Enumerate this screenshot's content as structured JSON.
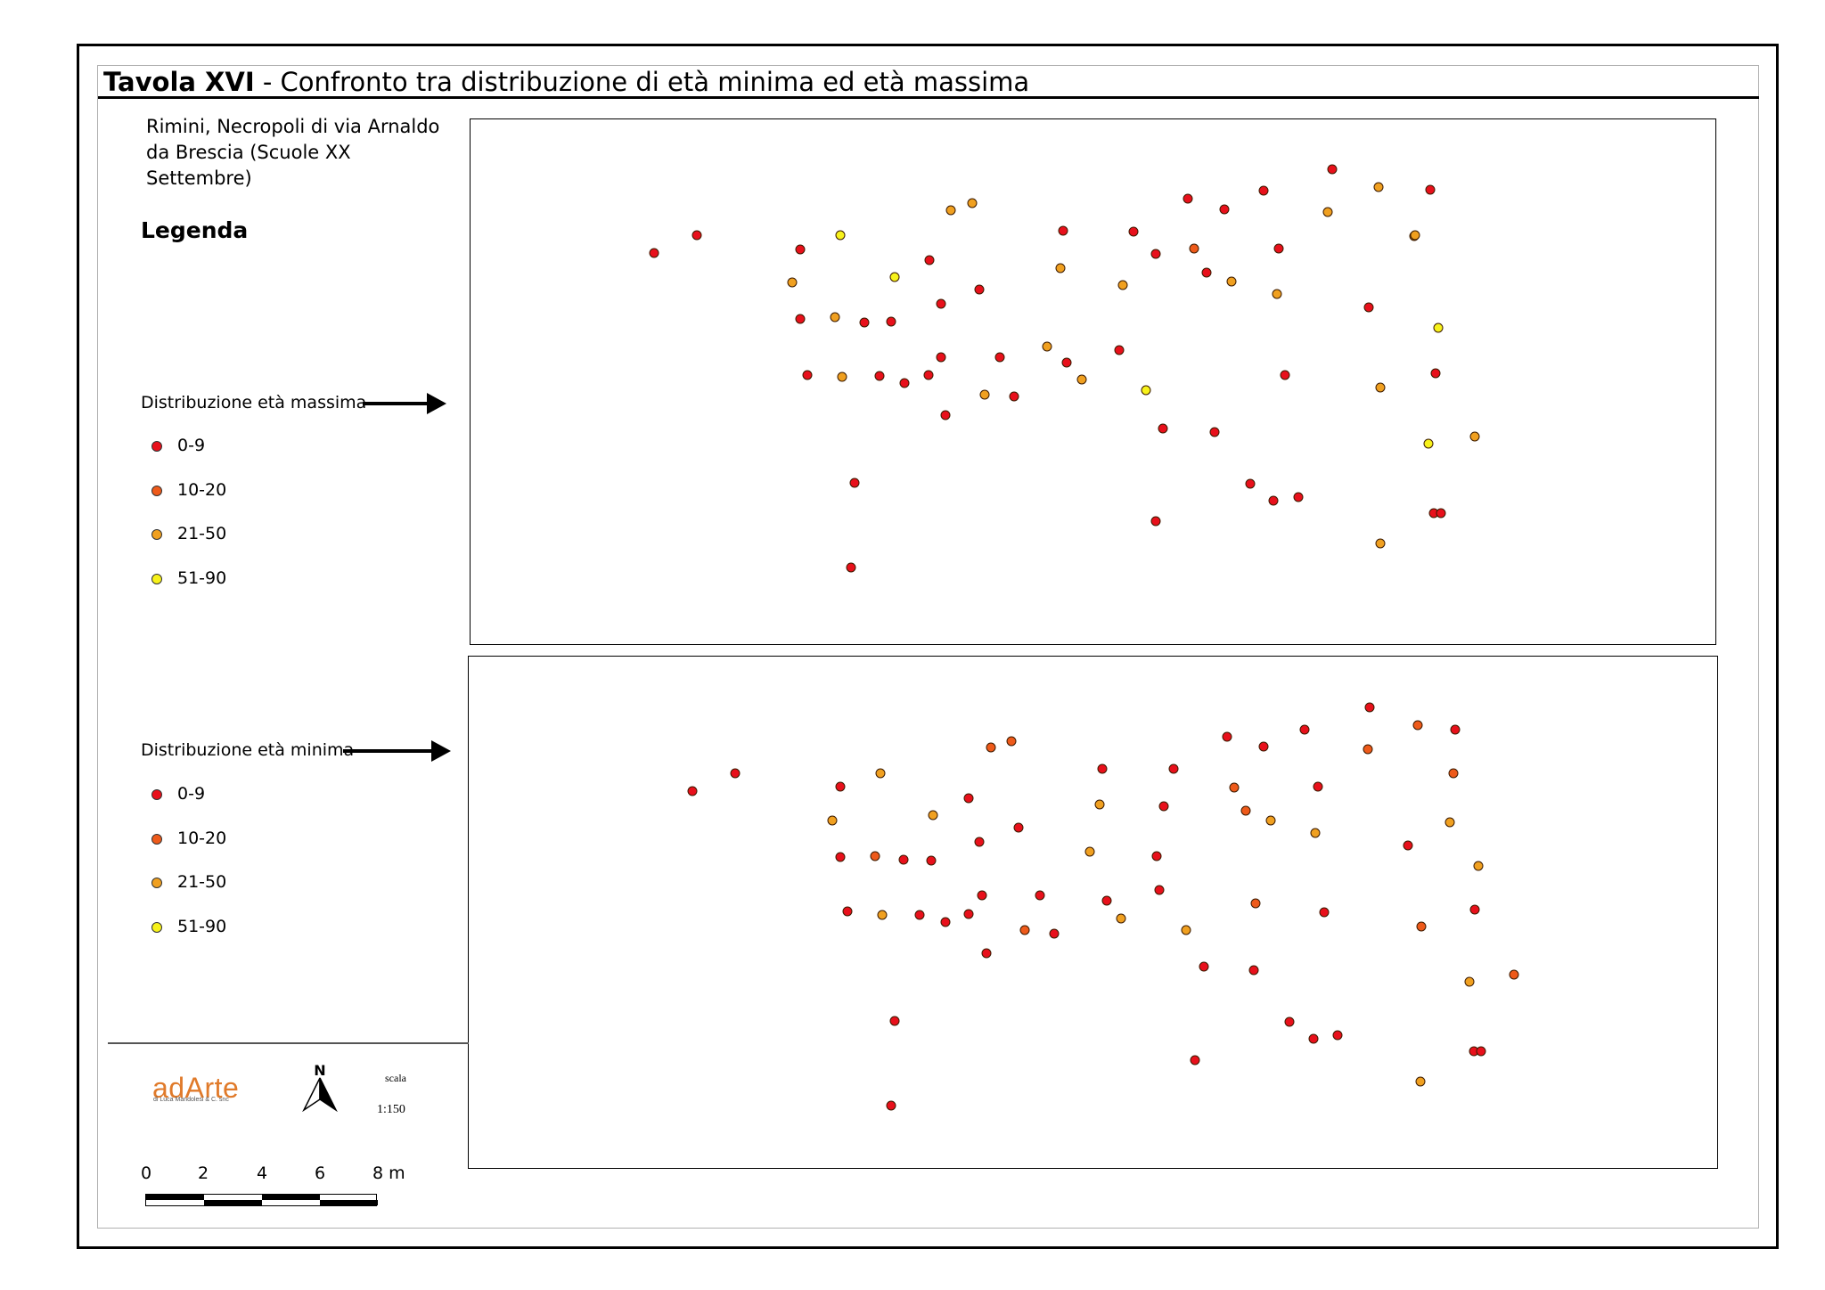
{
  "title": {
    "plate": "Tavola XVI",
    "text": "- Confronto tra distribuzione di età minima ed età massima"
  },
  "site": "Rimini, Necropoli di via Arnaldo da Brescia (Scuole XX Settembre)",
  "legend": {
    "heading": "Legenda",
    "classes": [
      {
        "label": "0-9",
        "color": "#e8101b"
      },
      {
        "label": "10-20",
        "color": "#ee5a1a"
      },
      {
        "label": "21-50",
        "color": "#f0a020"
      },
      {
        "label": "51-90",
        "color": "#f7f21a"
      }
    ],
    "max_label": "Distribuzione età massima",
    "min_label": "Distribuzione età minima"
  },
  "footer": {
    "logo": "adArte",
    "logo_sub": "di Luca Mandolesi & C. snc",
    "north_label": "N",
    "scale_label": "scala",
    "scale_ratio": "1:150",
    "scale_ticks": [
      "0",
      "2",
      "4",
      "6",
      "8 m"
    ]
  },
  "maps": {
    "max": [
      [
        733,
        283,
        0
      ],
      [
        781,
        263,
        0
      ],
      [
        897,
        279,
        0
      ],
      [
        942,
        263,
        3
      ],
      [
        1066,
        235,
        2
      ],
      [
        1090,
        227,
        2
      ],
      [
        1003,
        310,
        3
      ],
      [
        1042,
        291,
        0
      ],
      [
        888,
        316,
        2
      ],
      [
        897,
        357,
        0
      ],
      [
        936,
        355,
        2
      ],
      [
        969,
        361,
        0
      ],
      [
        999,
        360,
        0
      ],
      [
        1055,
        340,
        0
      ],
      [
        1098,
        324,
        0
      ],
      [
        1192,
        258,
        0
      ],
      [
        1189,
        300,
        2
      ],
      [
        1271,
        259,
        0
      ],
      [
        1259,
        319,
        2
      ],
      [
        1296,
        284,
        0
      ],
      [
        1332,
        222,
        0
      ],
      [
        1339,
        278,
        1
      ],
      [
        1373,
        234,
        0
      ],
      [
        1353,
        305,
        0
      ],
      [
        1381,
        315,
        2
      ],
      [
        1417,
        213,
        0
      ],
      [
        1434,
        278,
        0
      ],
      [
        1432,
        329,
        2
      ],
      [
        1494,
        189,
        0
      ],
      [
        1489,
        237,
        2
      ],
      [
        1546,
        209,
        2
      ],
      [
        1586,
        264,
        2
      ],
      [
        1604,
        212,
        0
      ],
      [
        1587,
        263,
        2
      ],
      [
        1613,
        367,
        3
      ],
      [
        905,
        420,
        0
      ],
      [
        944,
        422,
        2
      ],
      [
        986,
        421,
        0
      ],
      [
        1014,
        429,
        0
      ],
      [
        1041,
        420,
        0
      ],
      [
        1055,
        400,
        0
      ],
      [
        1060,
        465,
        0
      ],
      [
        1104,
        442,
        2
      ],
      [
        1121,
        400,
        0
      ],
      [
        1137,
        444,
        0
      ],
      [
        1174,
        388,
        2
      ],
      [
        1196,
        406,
        0
      ],
      [
        1213,
        425,
        2
      ],
      [
        1255,
        392,
        0
      ],
      [
        1285,
        437,
        3
      ],
      [
        1441,
        420,
        0
      ],
      [
        1535,
        344,
        0
      ],
      [
        1548,
        434,
        2
      ],
      [
        1610,
        418,
        0
      ],
      [
        1304,
        480,
        0
      ],
      [
        1362,
        484,
        0
      ],
      [
        1402,
        542,
        0
      ],
      [
        1428,
        561,
        0
      ],
      [
        1456,
        557,
        0
      ],
      [
        1296,
        584,
        0
      ],
      [
        1548,
        609,
        2
      ],
      [
        1602,
        497,
        3
      ],
      [
        1654,
        489,
        2
      ],
      [
        1608,
        575,
        0
      ],
      [
        1616,
        575,
        0
      ],
      [
        958,
        541,
        0
      ],
      [
        954,
        636,
        0
      ]
    ],
    "min": [
      [
        776,
        887,
        0
      ],
      [
        824,
        867,
        0
      ],
      [
        1111,
        838,
        1
      ],
      [
        1134,
        831,
        1
      ],
      [
        987,
        867,
        2
      ],
      [
        942,
        882,
        0
      ],
      [
        933,
        920,
        2
      ],
      [
        1046,
        914,
        2
      ],
      [
        1086,
        895,
        0
      ],
      [
        1142,
        928,
        0
      ],
      [
        1236,
        862,
        0
      ],
      [
        1233,
        902,
        2
      ],
      [
        1316,
        862,
        0
      ],
      [
        1305,
        904,
        0
      ],
      [
        1376,
        826,
        0
      ],
      [
        1417,
        837,
        0
      ],
      [
        1463,
        818,
        0
      ],
      [
        1384,
        883,
        1
      ],
      [
        1397,
        909,
        1
      ],
      [
        1425,
        920,
        2
      ],
      [
        1478,
        882,
        0
      ],
      [
        1475,
        934,
        2
      ],
      [
        1536,
        793,
        0
      ],
      [
        1534,
        840,
        1
      ],
      [
        1590,
        813,
        1
      ],
      [
        1632,
        818,
        0
      ],
      [
        1630,
        867,
        1
      ],
      [
        1579,
        948,
        0
      ],
      [
        1626,
        922,
        2
      ],
      [
        1658,
        971,
        2
      ],
      [
        1654,
        1020,
        0
      ],
      [
        942,
        961,
        0
      ],
      [
        981,
        960,
        1
      ],
      [
        1013,
        964,
        0
      ],
      [
        1044,
        965,
        0
      ],
      [
        1098,
        944,
        0
      ],
      [
        1222,
        955,
        2
      ],
      [
        1297,
        960,
        0
      ],
      [
        1241,
        1010,
        0
      ],
      [
        1300,
        998,
        0
      ],
      [
        950,
        1022,
        0
      ],
      [
        989,
        1026,
        2
      ],
      [
        1031,
        1026,
        0
      ],
      [
        1060,
        1034,
        0
      ],
      [
        1086,
        1025,
        0
      ],
      [
        1101,
        1004,
        0
      ],
      [
        1149,
        1043,
        1
      ],
      [
        1166,
        1004,
        0
      ],
      [
        1182,
        1047,
        0
      ],
      [
        1257,
        1030,
        2
      ],
      [
        1330,
        1043,
        2
      ],
      [
        1408,
        1013,
        1
      ],
      [
        1485,
        1023,
        0
      ],
      [
        1594,
        1039,
        1
      ],
      [
        1106,
        1069,
        0
      ],
      [
        1350,
        1084,
        0
      ],
      [
        1406,
        1088,
        0
      ],
      [
        1698,
        1093,
        1
      ],
      [
        1648,
        1101,
        2
      ],
      [
        1003,
        1145,
        0
      ],
      [
        1446,
        1146,
        0
      ],
      [
        1473,
        1165,
        0
      ],
      [
        1500,
        1161,
        0
      ],
      [
        1340,
        1189,
        0
      ],
      [
        1653,
        1179,
        0
      ],
      [
        1661,
        1179,
        0
      ],
      [
        1593,
        1213,
        2
      ],
      [
        999,
        1240,
        0
      ]
    ]
  }
}
